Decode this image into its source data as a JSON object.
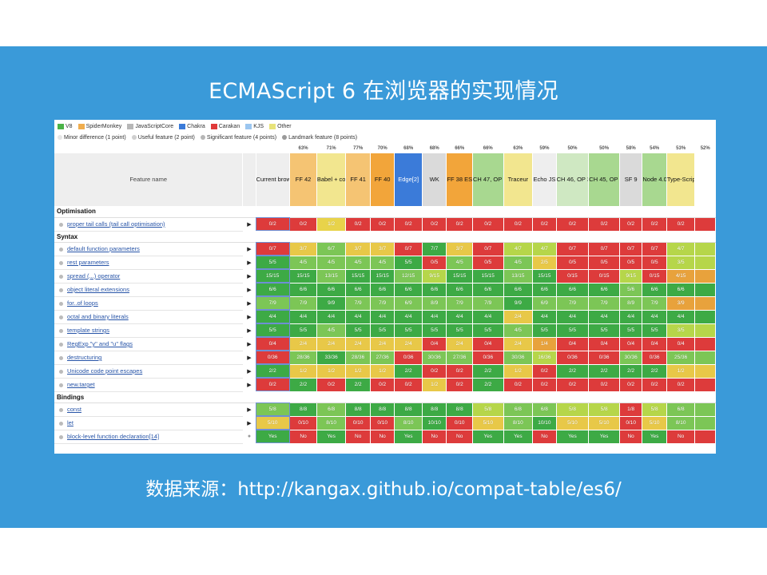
{
  "slide": {
    "title": "ECMAScript 6 在浏览器的实现情况",
    "footer": "数据来源：http://kangax.github.io/compat-table/es6/"
  },
  "legend": [
    {
      "label": "V8",
      "color": "#4bb348"
    },
    {
      "label": "SpiderMonkey",
      "color": "#f0ad4e"
    },
    {
      "label": "JavaScriptCore",
      "color": "#b7b7b7"
    },
    {
      "label": "Chakra",
      "color": "#3b7bd9"
    },
    {
      "label": "Carakan",
      "color": "#e03a3a"
    },
    {
      "label": "KJS",
      "color": "#9cc6f0"
    },
    {
      "label": "Other",
      "color": "#e8e37a"
    }
  ],
  "points_legend": [
    {
      "label": "Minor difference (1 point)",
      "color": "#e6e6e6"
    },
    {
      "label": "Useful feature (2 point)",
      "color": "#cfcfcf"
    },
    {
      "label": "Significant feature (4 points)",
      "color": "#b6b6b6"
    },
    {
      "label": "Landmark feature (8 points)",
      "color": "#9a9a9a"
    }
  ],
  "table": {
    "feature_header": "Feature name",
    "columns": [
      {
        "label": "Current browser",
        "pct": "",
        "bg": "#eeeeee"
      },
      {
        "label": "FF 42",
        "pct": "63%",
        "bg": "#f5c473"
      },
      {
        "label": "Babel + core-js[1]",
        "pct": "71%",
        "bg": "#f2e68f"
      },
      {
        "label": "FF 41",
        "pct": "77%",
        "bg": "#f5c473"
      },
      {
        "label": "FF 40",
        "pct": "70%",
        "bg": "#f2a53a"
      },
      {
        "label": "Edge[2]",
        "pct": "68%",
        "bg": "#3b7bd9"
      },
      {
        "label": "WK",
        "pct": "68%",
        "bg": "#dadada"
      },
      {
        "label": "FF 38 ESR",
        "pct": "66%",
        "bg": "#f2a53a"
      },
      {
        "label": "CH 47, OP 34[3]",
        "pct": "66%",
        "bg": "#a8d890"
      },
      {
        "label": "Traceur",
        "pct": "63%",
        "bg": "#f2e68f"
      },
      {
        "label": "Echo JS",
        "pct": "59%",
        "bg": "#eeeeee"
      },
      {
        "label": "CH 46, OP 33[3]",
        "pct": "50%",
        "bg": "#cfe8c2"
      },
      {
        "label": "CH 45, OP 32[3]",
        "pct": "50%",
        "bg": "#a8d890"
      },
      {
        "label": "SF 9",
        "pct": "58%",
        "bg": "#dadada"
      },
      {
        "label": "Node 4.0[5]",
        "pct": "54%",
        "bg": "#a8d890"
      },
      {
        "label": "Type-Script + core-js",
        "pct": "53%",
        "bg": "#f2e68f"
      },
      {
        "label": "",
        "pct": "52%",
        "bg": "#ffffff"
      }
    ],
    "groups": [
      {
        "name": "Optimisation",
        "rows": [
          {
            "feature": "proper tail calls (tail call optimisation)",
            "arrow": "▶",
            "cells": [
              "0/2",
              "0/2",
              "1/2",
              "0/2",
              "0/2",
              "0/2",
              "0/2",
              "0/2",
              "0/2",
              "0/2",
              "0/2",
              "0/2",
              "0/2",
              "0/2",
              "0/2",
              "0/2"
            ],
            "colors": [
              "#dd3b3b",
              "#dd3b3b",
              "#e8d34a",
              "#dd3b3b",
              "#dd3b3b",
              "#dd3b3b",
              "#dd3b3b",
              "#dd3b3b",
              "#dd3b3b",
              "#dd3b3b",
              "#dd3b3b",
              "#dd3b3b",
              "#dd3b3b",
              "#dd3b3b",
              "#dd3b3b",
              "#dd3b3b"
            ]
          }
        ]
      },
      {
        "name": "Syntax",
        "rows": [
          {
            "feature": "default function parameters",
            "arrow": "▶",
            "cells": [
              "0/7",
              "3/7",
              "6/7",
              "3/7",
              "3/7",
              "0/7",
              "7/7",
              "3/7",
              "0/7",
              "4/7",
              "4/7",
              "0/7",
              "0/7",
              "0/7",
              "0/7",
              "4/7"
            ],
            "colors": [
              "#dd3b3b",
              "#e8c848",
              "#7cc656",
              "#e8c848",
              "#e8c848",
              "#dd3b3b",
              "#3daa45",
              "#e8c848",
              "#dd3b3b",
              "#b6d64a",
              "#b6d64a",
              "#dd3b3b",
              "#dd3b3b",
              "#dd3b3b",
              "#dd3b3b",
              "#b6d64a"
            ]
          },
          {
            "feature": "rest parameters",
            "arrow": "▶",
            "cells": [
              "5/5",
              "4/5",
              "4/5",
              "4/5",
              "4/5",
              "5/5",
              "0/5",
              "4/5",
              "0/5",
              "4/5",
              "2/5",
              "0/5",
              "0/5",
              "0/5",
              "0/5",
              "3/5"
            ],
            "colors": [
              "#3daa45",
              "#7cc656",
              "#7cc656",
              "#7cc656",
              "#7cc656",
              "#3daa45",
              "#dd3b3b",
              "#7cc656",
              "#dd3b3b",
              "#7cc656",
              "#e8c848",
              "#dd3b3b",
              "#dd3b3b",
              "#dd3b3b",
              "#dd3b3b",
              "#b6d64a"
            ]
          },
          {
            "feature": "spread (...) operator",
            "arrow": "▶",
            "cells": [
              "15/15",
              "15/15",
              "13/15",
              "15/15",
              "15/15",
              "12/15",
              "9/15",
              "15/15",
              "15/15",
              "13/15",
              "15/15",
              "0/15",
              "0/15",
              "9/15",
              "0/15",
              "4/15"
            ],
            "colors": [
              "#3daa45",
              "#3daa45",
              "#7cc656",
              "#3daa45",
              "#3daa45",
              "#7cc656",
              "#b6d64a",
              "#3daa45",
              "#3daa45",
              "#7cc656",
              "#3daa45",
              "#dd3b3b",
              "#dd3b3b",
              "#b6d64a",
              "#dd3b3b",
              "#e8a23c"
            ]
          },
          {
            "feature": "object literal extensions",
            "arrow": "▶",
            "cells": [
              "6/6",
              "6/6",
              "6/6",
              "6/6",
              "6/6",
              "6/6",
              "6/6",
              "6/6",
              "6/6",
              "6/6",
              "6/6",
              "6/6",
              "6/6",
              "5/6",
              "6/6",
              "6/6"
            ],
            "colors": [
              "#3daa45",
              "#3daa45",
              "#3daa45",
              "#3daa45",
              "#3daa45",
              "#3daa45",
              "#3daa45",
              "#3daa45",
              "#3daa45",
              "#3daa45",
              "#3daa45",
              "#3daa45",
              "#3daa45",
              "#7cc656",
              "#3daa45",
              "#3daa45"
            ]
          },
          {
            "feature": "for..of loops",
            "arrow": "▶",
            "cells": [
              "7/9",
              "7/9",
              "9/9",
              "7/9",
              "7/9",
              "6/9",
              "8/9",
              "7/9",
              "7/9",
              "9/9",
              "6/9",
              "7/9",
              "7/9",
              "8/9",
              "7/9",
              "3/9"
            ],
            "colors": [
              "#7cc656",
              "#7cc656",
              "#3daa45",
              "#7cc656",
              "#7cc656",
              "#7cc656",
              "#7cc656",
              "#7cc656",
              "#7cc656",
              "#3daa45",
              "#7cc656",
              "#7cc656",
              "#7cc656",
              "#7cc656",
              "#7cc656",
              "#e8a23c"
            ]
          },
          {
            "feature": "octal and binary literals",
            "arrow": "▶",
            "cells": [
              "4/4",
              "4/4",
              "4/4",
              "4/4",
              "4/4",
              "4/4",
              "4/4",
              "4/4",
              "4/4",
              "2/4",
              "4/4",
              "4/4",
              "4/4",
              "4/4",
              "4/4",
              "4/4"
            ],
            "colors": [
              "#3daa45",
              "#3daa45",
              "#3daa45",
              "#3daa45",
              "#3daa45",
              "#3daa45",
              "#3daa45",
              "#3daa45",
              "#3daa45",
              "#e8c848",
              "#3daa45",
              "#3daa45",
              "#3daa45",
              "#3daa45",
              "#3daa45",
              "#3daa45"
            ]
          },
          {
            "feature": "template strings",
            "arrow": "▶",
            "cells": [
              "5/5",
              "5/5",
              "4/5",
              "5/5",
              "5/5",
              "5/5",
              "5/5",
              "5/5",
              "5/5",
              "4/5",
              "5/5",
              "5/5",
              "5/5",
              "5/5",
              "5/5",
              "3/5"
            ],
            "colors": [
              "#3daa45",
              "#3daa45",
              "#7cc656",
              "#3daa45",
              "#3daa45",
              "#3daa45",
              "#3daa45",
              "#3daa45",
              "#3daa45",
              "#7cc656",
              "#3daa45",
              "#3daa45",
              "#3daa45",
              "#3daa45",
              "#3daa45",
              "#b6d64a"
            ]
          },
          {
            "feature": "RegExp \"y\" and \"u\" flags",
            "arrow": "▶",
            "cells": [
              "0/4",
              "2/4",
              "2/4",
              "2/4",
              "2/4",
              "2/4",
              "0/4",
              "2/4",
              "0/4",
              "2/4",
              "1/4",
              "0/4",
              "0/4",
              "0/4",
              "0/4",
              "0/4"
            ],
            "colors": [
              "#dd3b3b",
              "#e8c848",
              "#e8c848",
              "#e8c848",
              "#e8c848",
              "#e8c848",
              "#dd3b3b",
              "#e8c848",
              "#dd3b3b",
              "#e8c848",
              "#e8a23c",
              "#dd3b3b",
              "#dd3b3b",
              "#dd3b3b",
              "#dd3b3b",
              "#dd3b3b"
            ]
          },
          {
            "feature": "destructuring",
            "arrow": "▶",
            "cells": [
              "0/36",
              "28/36",
              "33/36",
              "28/36",
              "27/36",
              "0/36",
              "30/36",
              "27/36",
              "0/36",
              "30/36",
              "16/36",
              "0/36",
              "0/36",
              "30/36",
              "0/36",
              "25/36"
            ],
            "colors": [
              "#dd3b3b",
              "#7cc656",
              "#3daa45",
              "#7cc656",
              "#7cc656",
              "#dd3b3b",
              "#7cc656",
              "#7cc656",
              "#dd3b3b",
              "#7cc656",
              "#b6d64a",
              "#dd3b3b",
              "#dd3b3b",
              "#7cc656",
              "#dd3b3b",
              "#7cc656"
            ]
          },
          {
            "feature": "Unicode code point escapes",
            "arrow": "▶",
            "cells": [
              "2/2",
              "1/2",
              "1/2",
              "1/2",
              "1/2",
              "2/2",
              "0/2",
              "0/2",
              "2/2",
              "1/2",
              "0/2",
              "2/2",
              "2/2",
              "2/2",
              "2/2",
              "1/2"
            ],
            "colors": [
              "#3daa45",
              "#e8c848",
              "#e8c848",
              "#e8c848",
              "#e8c848",
              "#3daa45",
              "#dd3b3b",
              "#dd3b3b",
              "#3daa45",
              "#e8c848",
              "#dd3b3b",
              "#3daa45",
              "#3daa45",
              "#3daa45",
              "#3daa45",
              "#e8c848"
            ]
          },
          {
            "feature": "new.target",
            "arrow": "▶",
            "cells": [
              "0/2",
              "2/2",
              "0/2",
              "2/2",
              "0/2",
              "0/2",
              "1/2",
              "0/2",
              "2/2",
              "0/2",
              "0/2",
              "0/2",
              "0/2",
              "0/2",
              "0/2",
              "0/2"
            ],
            "colors": [
              "#dd3b3b",
              "#3daa45",
              "#dd3b3b",
              "#3daa45",
              "#dd3b3b",
              "#dd3b3b",
              "#e8c848",
              "#dd3b3b",
              "#3daa45",
              "#dd3b3b",
              "#dd3b3b",
              "#dd3b3b",
              "#dd3b3b",
              "#dd3b3b",
              "#dd3b3b",
              "#dd3b3b"
            ]
          }
        ]
      },
      {
        "name": "Bindings",
        "rows": [
          {
            "feature": "const",
            "arrow": "▶",
            "cells": [
              "5/8",
              "8/8",
              "6/8",
              "8/8",
              "8/8",
              "8/8",
              "8/8",
              "8/8",
              "5/8",
              "6/8",
              "6/8",
              "5/8",
              "5/8",
              "1/8",
              "5/8",
              "6/8"
            ],
            "colors": [
              "#7cc656",
              "#3daa45",
              "#7cc656",
              "#3daa45",
              "#3daa45",
              "#3daa45",
              "#3daa45",
              "#3daa45",
              "#b6d64a",
              "#7cc656",
              "#7cc656",
              "#b6d64a",
              "#b6d64a",
              "#dd3b3b",
              "#b6d64a",
              "#7cc656"
            ]
          },
          {
            "feature": "let",
            "arrow": "▶",
            "cells": [
              "5/10",
              "0/10",
              "8/10",
              "0/10",
              "0/10",
              "8/10",
              "10/10",
              "0/10",
              "5/10",
              "8/10",
              "10/10",
              "5/10",
              "5/10",
              "0/10",
              "5/10",
              "8/10"
            ],
            "colors": [
              "#e8c848",
              "#dd3b3b",
              "#7cc656",
              "#dd3b3b",
              "#dd3b3b",
              "#7cc656",
              "#3daa45",
              "#dd3b3b",
              "#e8c848",
              "#7cc656",
              "#3daa45",
              "#e8c848",
              "#e8c848",
              "#dd3b3b",
              "#e8c848",
              "#7cc656"
            ]
          },
          {
            "feature": "block-level function declaration[14]",
            "arrow": "●",
            "cells": [
              "Yes",
              "No",
              "Yes",
              "No",
              "No",
              "Yes",
              "No",
              "No",
              "Yes",
              "Yes",
              "No",
              "Yes",
              "Yes",
              "No",
              "Yes",
              "No"
            ],
            "colors": [
              "#3daa45",
              "#dd3b3b",
              "#3daa45",
              "#dd3b3b",
              "#dd3b3b",
              "#3daa45",
              "#dd3b3b",
              "#dd3b3b",
              "#3daa45",
              "#3daa45",
              "#dd3b3b",
              "#3daa45",
              "#3daa45",
              "#dd3b3b",
              "#3daa45",
              "#dd3b3b"
            ]
          }
        ]
      }
    ]
  }
}
